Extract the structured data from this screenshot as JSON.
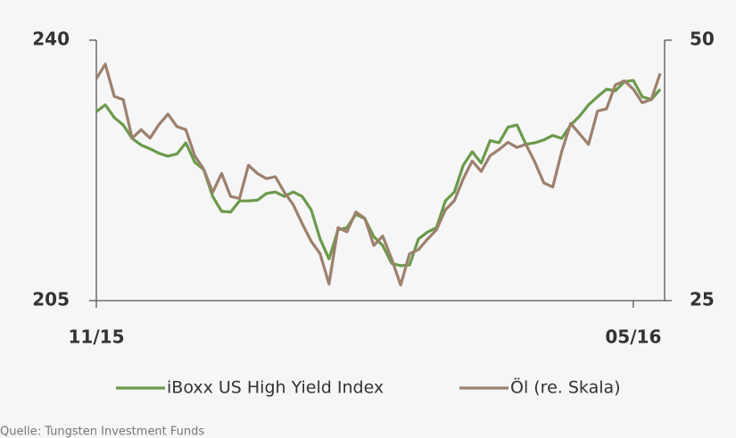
{
  "chart_data": {
    "type": "line",
    "x": [
      0,
      1,
      2,
      3,
      4,
      5,
      6,
      7,
      8,
      9,
      10,
      11,
      12,
      13,
      14,
      15,
      16,
      17,
      18,
      19,
      20,
      21,
      22,
      23,
      24,
      25,
      26,
      27,
      28,
      29,
      30,
      31,
      32,
      33,
      34,
      35,
      36,
      37,
      38,
      39,
      40,
      41,
      42,
      43,
      44,
      45,
      46,
      47,
      48,
      49,
      50,
      51,
      52,
      53,
      54,
      55,
      56,
      57,
      58,
      59,
      60,
      61,
      62,
      63
    ],
    "series": [
      {
        "name": "iBoxx US High Yield Index",
        "color": "#6b9a4a",
        "values": [
          230.4,
          231.3,
          229.6,
          228.6,
          226.8,
          225.9,
          225.4,
          224.8,
          224.4,
          224.7,
          226.2,
          223.6,
          222.6,
          219.0,
          217.0,
          216.9,
          218.4,
          218.4,
          218.5,
          219.4,
          219.6,
          219.0,
          219.6,
          219.0,
          217.2,
          213.3,
          210.6,
          214.5,
          214.8,
          216.6,
          216.0,
          213.6,
          212.4,
          210.0,
          209.7,
          209.8,
          213.3,
          214.2,
          214.8,
          218.4,
          219.6,
          223.2,
          225.0,
          223.5,
          226.5,
          226.2,
          228.3,
          228.6,
          226.0,
          226.2,
          226.6,
          227.2,
          226.8,
          228.6,
          229.8,
          231.3,
          232.4,
          233.4,
          233.2,
          234.4,
          234.6,
          232.4,
          232.0,
          233.4
        ]
      },
      {
        "name": "Öl (re. Skala)",
        "color": "#9c806d",
        "axis": "y2",
        "values": [
          46.3,
          47.7,
          44.6,
          44.3,
          40.6,
          41.4,
          40.6,
          41.9,
          42.9,
          41.7,
          41.4,
          38.9,
          37.6,
          35.4,
          37.2,
          35.0,
          34.8,
          38.0,
          37.2,
          36.7,
          36.9,
          35.4,
          34.2,
          32.4,
          30.7,
          29.5,
          26.6,
          32.0,
          31.6,
          33.5,
          32.9,
          30.3,
          31.2,
          29.0,
          26.5,
          29.5,
          29.9,
          30.9,
          31.8,
          33.7,
          34.6,
          36.7,
          38.4,
          37.4,
          38.9,
          39.5,
          40.2,
          39.7,
          40.0,
          38.3,
          36.3,
          35.9,
          39.3,
          42.0,
          41.0,
          40.0,
          43.2,
          43.4,
          45.7,
          46.1,
          45.3,
          44.0,
          44.3,
          46.8
        ]
      }
    ],
    "xlim": [
      0,
      63.5
    ],
    "xticks": [
      {
        "value": 0,
        "label": "11/15"
      },
      {
        "value": 60,
        "label": "05/16"
      }
    ],
    "ylim": [
      205,
      240
    ],
    "yticks": [
      205,
      240
    ],
    "y2lim": [
      25,
      50
    ],
    "y2ticks": [
      25,
      50
    ],
    "legend": "bottom",
    "source": "Quelle: Tungsten Investment Funds"
  }
}
